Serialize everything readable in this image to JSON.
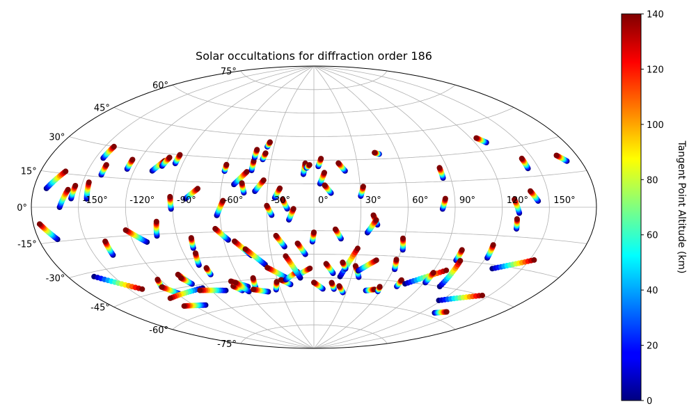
{
  "chart_data": {
    "type": "scatter",
    "projection": "aitoff",
    "title": "Solar occultations for diffraction order 186",
    "lon_ticks": [
      "-150°",
      "-120°",
      "-90°",
      "-60°",
      "-30°",
      "0°",
      "30°",
      "60°",
      "90°",
      "120°",
      "150°"
    ],
    "lat_ticks": [
      "-75°",
      "-60°",
      "-45°",
      "-30°",
      "-15°",
      "0°",
      "15°",
      "30°",
      "45°",
      "60°",
      "75°"
    ],
    "lon_tick_values": [
      -150,
      -120,
      -90,
      -60,
      -30,
      0,
      30,
      60,
      90,
      120,
      150
    ],
    "lat_tick_values": [
      -75,
      -60,
      -45,
      -30,
      -15,
      0,
      15,
      30,
      45,
      60,
      75
    ],
    "grid": true,
    "colorbar": {
      "label": "Tangent Point Altitude (km)",
      "range": [
        0,
        140
      ],
      "ticks": [
        "0",
        "20",
        "40",
        "60",
        "80",
        "100",
        "120",
        "140"
      ],
      "tick_values": [
        0,
        20,
        40,
        60,
        80,
        100,
        120,
        140
      ],
      "colormap": "jet"
    },
    "tracks": [
      {
        "start": [
          -172,
          8
        ],
        "end": [
          -164,
          16
        ]
      },
      {
        "start": [
          -155,
          4
        ],
        "end": [
          -154,
          10
        ]
      },
      {
        "start": [
          -162,
          0
        ],
        "end": [
          -158,
          8
        ]
      },
      {
        "start": [
          -168,
          -14
        ],
        "end": [
          -176,
          -7
        ]
      },
      {
        "start": [
          -145,
          4
        ],
        "end": [
          -146,
          12
        ]
      },
      {
        "start": [
          -140,
          16
        ],
        "end": [
          -140,
          21
        ]
      },
      {
        "start": [
          -145,
          24
        ],
        "end": [
          -144,
          30
        ]
      },
      {
        "start": [
          -125,
          20
        ],
        "end": [
          -125,
          25
        ]
      },
      {
        "start": [
          -108,
          20
        ],
        "end": [
          -103,
          26
        ]
      },
      {
        "start": [
          -103,
          23
        ],
        "end": [
          -101,
          28
        ]
      },
      {
        "start": [
          -95,
          25
        ],
        "end": [
          -95,
          30
        ]
      },
      {
        "start": [
          -103,
          -16
        ],
        "end": [
          -101,
          -8
        ]
      },
      {
        "start": [
          -111,
          -19
        ],
        "end": [
          -122,
          -12
        ]
      },
      {
        "start": [
          -91,
          -1
        ],
        "end": [
          -92,
          6
        ]
      },
      {
        "start": [
          -82,
          5
        ],
        "end": [
          -75,
          11
        ]
      },
      {
        "start": [
          -62,
          -5
        ],
        "end": [
          -58,
          4
        ]
      },
      {
        "start": [
          -60,
          22
        ],
        "end": [
          -60,
          26
        ]
      },
      {
        "start": [
          -52,
          14
        ],
        "end": [
          -45,
          22
        ]
      },
      {
        "start": [
          -45,
          9
        ],
        "end": [
          -47,
          15
        ]
      },
      {
        "start": [
          -42,
          23
        ],
        "end": [
          -42,
          29
        ]
      },
      {
        "start": [
          -42,
          31
        ],
        "end": [
          -42,
          36
        ]
      },
      {
        "start": [
          -36,
          30
        ],
        "end": [
          -35,
          34
        ]
      },
      {
        "start": [
          -35,
          38
        ],
        "end": [
          -34,
          41
        ]
      },
      {
        "start": [
          -38,
          10
        ],
        "end": [
          -33,
          17
        ]
      },
      {
        "start": [
          -25,
          6
        ],
        "end": [
          -22,
          12
        ]
      },
      {
        "start": [
          -27,
          -5
        ],
        "end": [
          -30,
          1
        ]
      },
      {
        "start": [
          -16,
          -8
        ],
        "end": [
          -13,
          -1
        ]
      },
      {
        "start": [
          -17,
          -1
        ],
        "end": [
          -20,
          5
        ]
      },
      {
        "start": [
          -7,
          21
        ],
        "end": [
          -6,
          28
        ]
      },
      {
        "start": [
          -5,
          25
        ],
        "end": [
          -3,
          27
        ]
      },
      {
        "start": [
          3,
          26
        ],
        "end": [
          5,
          31
        ]
      },
      {
        "start": [
          4,
          15
        ],
        "end": [
          7,
          22
        ]
      },
      {
        "start": [
          11,
          9
        ],
        "end": [
          7,
          14
        ]
      },
      {
        "start": [
          21,
          23
        ],
        "end": [
          17,
          28
        ]
      },
      {
        "start": [
          30,
          7
        ],
        "end": [
          32,
          13
        ]
      },
      {
        "start": [
          47,
          33
        ],
        "end": [
          44,
          34
        ]
      },
      {
        "start": [
          41,
          -11
        ],
        "end": [
          38,
          -5
        ]
      },
      {
        "start": [
          35,
          -16
        ],
        "end": [
          40,
          -8
        ]
      },
      {
        "start": [
          -82,
          -24
        ],
        "end": [
          -81,
          -18
        ]
      },
      {
        "start": [
          -84,
          -34
        ],
        "end": [
          -82,
          -27
        ]
      },
      {
        "start": [
          -138,
          -24
        ],
        "end": [
          -138,
          -17
        ]
      },
      {
        "start": [
          -57,
          -20
        ],
        "end": [
          -64,
          -13
        ]
      },
      {
        "start": [
          -44,
          -30
        ],
        "end": [
          -53,
          -21
        ]
      },
      {
        "start": [
          -36,
          -36
        ],
        "end": [
          -47,
          -26
        ]
      },
      {
        "start": [
          -20,
          -25
        ],
        "end": [
          -25,
          -18
        ]
      },
      {
        "start": [
          -6,
          -30
        ],
        "end": [
          -11,
          -23
        ]
      },
      {
        "start": [
          -1,
          -22
        ],
        "end": [
          0,
          -16
        ]
      },
      {
        "start": [
          18,
          -20
        ],
        "end": [
          14,
          -14
        ]
      },
      {
        "start": [
          61,
          -26
        ],
        "end": [
          59,
          -19
        ]
      },
      {
        "start": [
          121,
          -27
        ],
        "end": [
          120,
          -20
        ]
      },
      {
        "start": [
          101,
          -30
        ],
        "end": [
          101,
          -24
        ]
      },
      {
        "start": [
          131,
          -11
        ],
        "end": [
          130,
          -6
        ]
      },
      {
        "start": [
          131,
          -3
        ],
        "end": [
          128,
          4
        ]
      },
      {
        "start": [
          143,
          3
        ],
        "end": [
          139,
          8
        ]
      },
      {
        "start": [
          143,
          19
        ],
        "end": [
          143,
          24
        ]
      },
      {
        "start": [
          128,
          34
        ],
        "end": [
          124,
          37
        ]
      },
      {
        "start": [
          85,
          17
        ],
        "end": [
          85,
          23
        ]
      },
      {
        "start": [
          82,
          -1
        ],
        "end": [
          84,
          5
        ]
      },
      {
        "start": [
          171,
          20
        ],
        "end": [
          167,
          23
        ]
      },
      {
        "start": [
          -163,
          -32
        ],
        "end": [
          -141,
          -42
        ]
      },
      {
        "start": [
          -125,
          -43
        ],
        "end": [
          -122,
          -39
        ]
      },
      {
        "start": [
          -118,
          -48
        ],
        "end": [
          -125,
          -43
        ]
      },
      {
        "start": [
          -101,
          -43
        ],
        "end": [
          -104,
          -38
        ]
      },
      {
        "start": [
          -100,
          -44
        ],
        "end": [
          -104,
          -40
        ]
      },
      {
        "start": [
          -95,
          -47
        ],
        "end": [
          -130,
          -49
        ]
      },
      {
        "start": [
          -110,
          -56
        ],
        "end": [
          -129,
          -54
        ]
      },
      {
        "start": [
          -78,
          -50
        ],
        "end": [
          -99,
          -48
        ]
      },
      {
        "start": [
          -80,
          -40
        ],
        "end": [
          -80,
          -36
        ]
      },
      {
        "start": [
          -64,
          -51
        ],
        "end": [
          -69,
          -48
        ]
      },
      {
        "start": [
          -57,
          -49
        ],
        "end": [
          -68,
          -45
        ]
      },
      {
        "start": [
          -51,
          -50
        ],
        "end": [
          -49,
          -44
        ]
      },
      {
        "start": [
          -59,
          -52
        ],
        "end": [
          -65,
          -46
        ]
      },
      {
        "start": [
          -42,
          -53
        ],
        "end": [
          -54,
          -51
        ]
      },
      {
        "start": [
          -22,
          -45
        ],
        "end": [
          -35,
          -38
        ]
      },
      {
        "start": [
          -34,
          -52
        ],
        "end": [
          -31,
          -47
        ]
      },
      {
        "start": [
          -20,
          -49
        ],
        "end": [
          -27,
          -46
        ]
      },
      {
        "start": [
          -23,
          -46
        ],
        "end": [
          -13,
          -41
        ]
      },
      {
        "start": [
          -12,
          -43
        ],
        "end": [
          -3,
          -39
        ]
      },
      {
        "start": [
          -11,
          -45
        ],
        "end": [
          -20,
          -31
        ]
      },
      {
        "start": [
          8,
          -52
        ],
        "end": [
          0,
          -48
        ]
      },
      {
        "start": [
          15,
          -42
        ],
        "end": [
          9,
          -36
        ]
      },
      {
        "start": [
          18,
          -52
        ],
        "end": [
          15,
          -48
        ]
      },
      {
        "start": [
          21,
          -44
        ],
        "end": [
          30,
          -26
        ]
      },
      {
        "start": [
          24,
          -39
        ],
        "end": [
          21,
          -35
        ]
      },
      {
        "start": [
          27,
          -54
        ],
        "end": [
          22,
          -50
        ]
      },
      {
        "start": [
          36,
          -44
        ],
        "end": [
          31,
          -37
        ]
      },
      {
        "start": [
          34,
          -40
        ],
        "end": [
          45,
          -33
        ]
      },
      {
        "start": [
          47,
          -52
        ],
        "end": [
          54,
          -51
        ]
      },
      {
        "start": [
          61,
          -38
        ],
        "end": [
          59,
          -32
        ]
      },
      {
        "start": [
          58,
          -52
        ],
        "end": [
          57,
          -49
        ]
      },
      {
        "start": [
          71,
          -48
        ],
        "end": [
          71,
          -44
        ]
      },
      {
        "start": [
          76,
          -46
        ],
        "end": [
          99,
          -36
        ]
      },
      {
        "start": [
          91,
          -44
        ],
        "end": [
          91,
          -38
        ]
      },
      {
        "start": [
          105,
          -45
        ],
        "end": [
          104,
          -30
        ]
      },
      {
        "start": [
          118,
          -52
        ],
        "end": [
          145,
          -45
        ]
      },
      {
        "start": [
          132,
          -58
        ],
        "end": [
          140,
          -56
        ]
      },
      {
        "start": [
          130,
          -32
        ],
        "end": [
          153,
          -25
        ]
      }
    ]
  }
}
